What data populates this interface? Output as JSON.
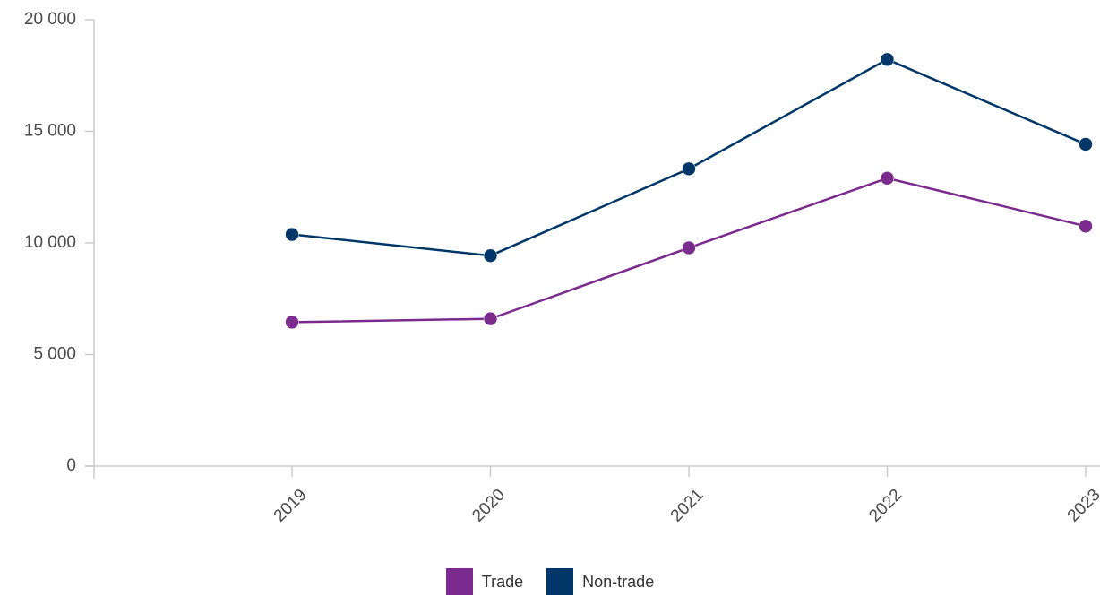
{
  "chart_data": {
    "type": "line",
    "categories": [
      "2019",
      "2020",
      "2021",
      "2022",
      "2023"
    ],
    "series": [
      {
        "name": "Trade",
        "color": "#7b2a8e",
        "values": [
          6450,
          6600,
          9780,
          12900,
          10750
        ]
      },
      {
        "name": "Non-trade",
        "color": "#003768",
        "values": [
          10380,
          9430,
          13320,
          18220,
          14420
        ]
      }
    ],
    "ylim": [
      0,
      20000
    ],
    "y_ticks": [
      0,
      5000,
      10000,
      15000,
      20000
    ],
    "y_tick_labels": [
      "0",
      "5 000",
      "10 000",
      "15 000",
      "20 000"
    ],
    "grid": false,
    "legend_position": "bottom-center"
  },
  "legend": {
    "items": [
      {
        "label": "Trade",
        "color": "#7b2a8e"
      },
      {
        "label": "Non-trade",
        "color": "#003768"
      }
    ]
  }
}
